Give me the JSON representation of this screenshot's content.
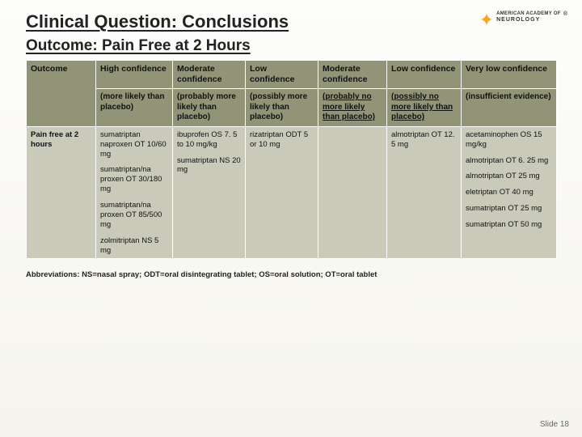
{
  "title": "Clinical Question: Conclusions",
  "subtitle": "Outcome: Pain Free at 2 Hours",
  "logo": {
    "l1": "AMERICAN ACADEMY OF",
    "l2": "NEUROLOGY"
  },
  "table": {
    "row_label_header": "Outcome",
    "row_label_body": "Pain free at 2 hours",
    "cols": [
      {
        "header": "High confidence",
        "sub": "(more likely than placebo)"
      },
      {
        "header": "Moderate confidence",
        "sub": "(probably more likely than placebo)"
      },
      {
        "header": "Low confidence",
        "sub": "(possibly more likely than placebo)"
      },
      {
        "header": "Moderate confidence",
        "sub": "(probably no more likely than placebo)"
      },
      {
        "header": "Low confidence",
        "sub": "(possibly no more likely than placebo)"
      },
      {
        "header": "Very low confidence",
        "sub": "(insufficient evidence)"
      }
    ],
    "c1": [
      "sumatriptan naproxen OT 10/60 mg",
      "sumatriptan/na proxen OT 30/180 mg",
      "sumatriptan/na proxen OT 85/500 mg",
      "zolmitriptan NS 5 mg"
    ],
    "c2": [
      "ibuprofen OS 7. 5 to 10 mg/kg",
      "sumatriptan NS 20 mg"
    ],
    "c3": [
      "rizatriptan ODT 5 or 10 mg"
    ],
    "c4": [],
    "c5": [
      "almotriptan OT 12. 5 mg"
    ],
    "c6": [
      "acetaminophen OS 15 mg/kg",
      "almotriptan OT 6. 25 mg",
      "almotriptan OT 25 mg",
      "eletriptan OT 40 mg",
      "sumatriptan OT 25 mg",
      "sumatriptan OT 50 mg"
    ]
  },
  "abbrev": "Abbreviations: NS=nasal spray; ODT=oral disintegrating tablet; OS=oral solution; OT=oral tablet",
  "slidenum_label": "Slide",
  "slidenum": "18",
  "colors": {
    "header_bg": "#929477",
    "body_bg": "#c9caba",
    "page_bg_top": "#fdfdfb",
    "page_bg_bottom": "#f5f4ed"
  }
}
